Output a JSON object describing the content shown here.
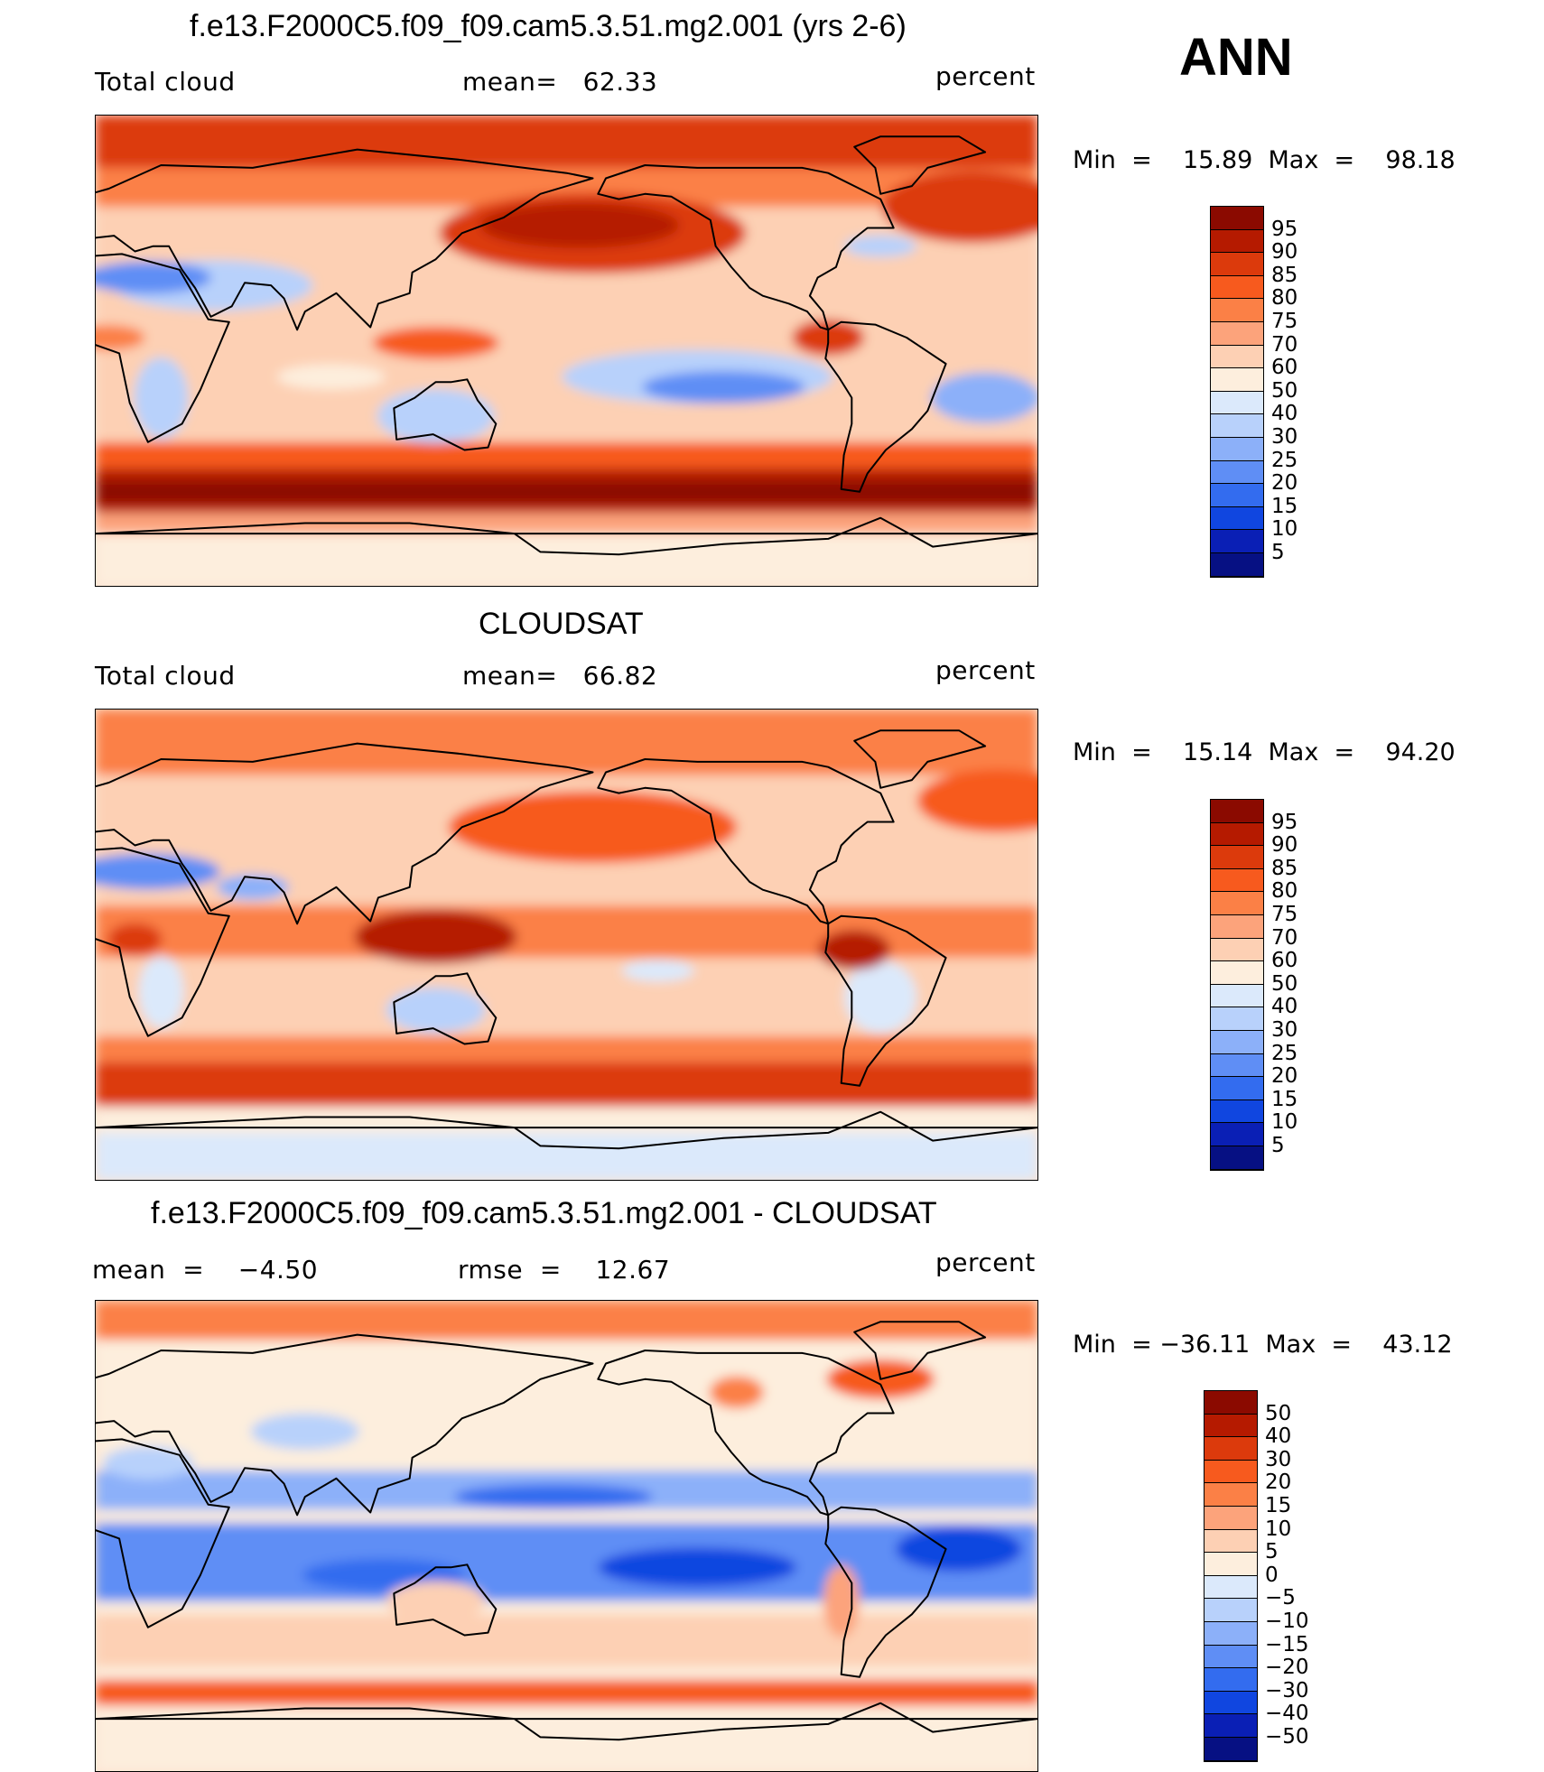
{
  "season": "ANN",
  "panels": [
    {
      "title": "f.e13.F2000C5.f09_f09.cam5.3.51.mg2.001 (yrs 2-6)",
      "left_label": "Total cloud",
      "mid_label": "mean=   62.33",
      "right_label": "percent",
      "minmax": "Min  =    15.89  Max  =    98.18",
      "colorbar": {
        "labels": [
          "95",
          "90",
          "85",
          "80",
          "75",
          "70",
          "60",
          "50",
          "40",
          "30",
          "25",
          "20",
          "15",
          "10",
          "5"
        ],
        "colors": [
          "#8b0a00",
          "#b51a00",
          "#dc3a0c",
          "#f75a1e",
          "#fb8046",
          "#fca37b",
          "#fdd0b4",
          "#fdeedd",
          "#dbe9fb",
          "#b8d1fb",
          "#8cb0f9",
          "#5f8ef5",
          "#336cef",
          "#1046e0",
          "#0a1fb5",
          "#061083"
        ]
      },
      "field": "model"
    },
    {
      "title": "CLOUDSAT",
      "left_label": "Total cloud",
      "mid_label": "mean=   66.82",
      "right_label": "percent",
      "minmax": "Min  =    15.14  Max  =    94.20",
      "colorbar": {
        "labels": [
          "95",
          "90",
          "85",
          "80",
          "75",
          "70",
          "60",
          "50",
          "40",
          "30",
          "25",
          "20",
          "15",
          "10",
          "5"
        ],
        "colors": [
          "#8b0a00",
          "#b51a00",
          "#dc3a0c",
          "#f75a1e",
          "#fb8046",
          "#fca37b",
          "#fdd0b4",
          "#fdeedd",
          "#dbe9fb",
          "#b8d1fb",
          "#8cb0f9",
          "#5f8ef5",
          "#336cef",
          "#1046e0",
          "#0a1fb5",
          "#061083"
        ]
      },
      "field": "obs"
    },
    {
      "title": "f.e13.F2000C5.f09_f09.cam5.3.51.mg2.001 - CLOUDSAT",
      "left_label": "mean  =    −4.50",
      "mid_label": "rmse  =    12.67",
      "right_label": "percent",
      "minmax": "Min  = −36.11  Max  =    43.12",
      "colorbar": {
        "labels": [
          "50",
          "40",
          "30",
          "20",
          "15",
          "10",
          "5",
          "0",
          "−5",
          "−10",
          "−15",
          "−20",
          "−30",
          "−40",
          "−50"
        ],
        "colors": [
          "#8b0a00",
          "#b51a00",
          "#dc3a0c",
          "#f75a1e",
          "#fb8046",
          "#fca37b",
          "#fdd0b4",
          "#fdeedd",
          "#dbe9fb",
          "#b8d1fb",
          "#8cb0f9",
          "#5f8ef5",
          "#336cef",
          "#1046e0",
          "#0a1fb5",
          "#061083"
        ]
      },
      "field": "diff"
    }
  ]
}
